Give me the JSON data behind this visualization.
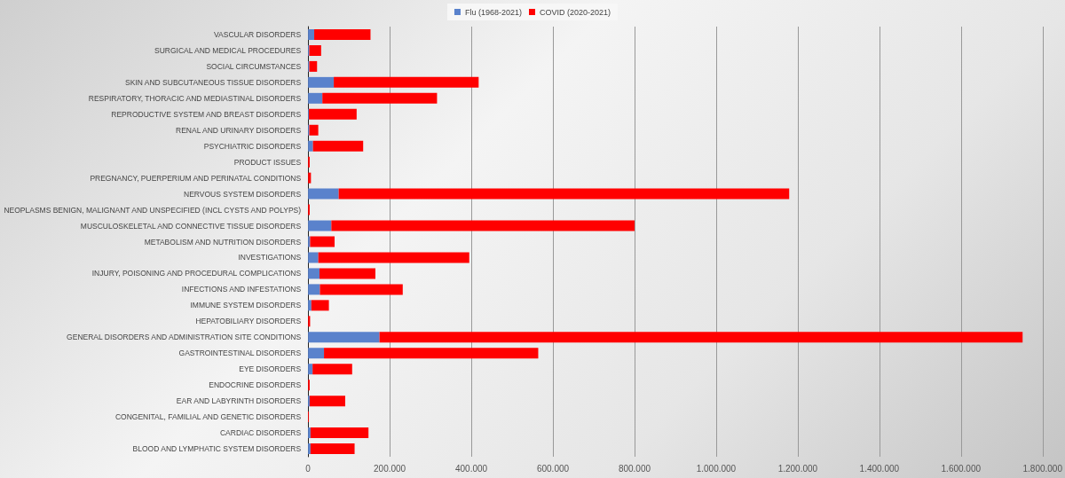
{
  "chart_data": {
    "type": "bar",
    "orientation": "horizontal",
    "stacked": true,
    "categories": [
      "VASCULAR DISORDERS",
      "SURGICAL AND MEDICAL PROCEDURES",
      "SOCIAL CIRCUMSTANCES",
      "SKIN AND SUBCUTANEOUS TISSUE DISORDERS",
      "RESPIRATORY, THORACIC AND MEDIASTINAL DISORDERS",
      "REPRODUCTIVE SYSTEM AND BREAST DISORDERS",
      "RENAL AND URINARY DISORDERS",
      "PSYCHIATRIC DISORDERS",
      "PRODUCT ISSUES",
      "PREGNANCY, PUERPERIUM AND PERINATAL CONDITIONS",
      "NERVOUS SYSTEM DISORDERS",
      "NEOPLASMS BENIGN, MALIGNANT AND UNSPECIFIED (INCL CYSTS AND POLYPS)",
      "MUSCULOSKELETAL AND CONNECTIVE TISSUE DISORDERS",
      "METABOLISM AND NUTRITION DISORDERS",
      "INVESTIGATIONS",
      "INJURY, POISONING AND PROCEDURAL COMPLICATIONS",
      "INFECTIONS AND INFESTATIONS",
      "IMMUNE SYSTEM DISORDERS",
      "HEPATOBILIARY DISORDERS",
      "GENERAL DISORDERS AND ADMINISTRATION SITE CONDITIONS",
      "GASTROINTESTINAL DISORDERS",
      "EYE DISORDERS",
      "ENDOCRINE DISORDERS",
      "EAR AND LABYRINTH DISORDERS",
      "CONGENITAL, FAMILIAL AND GENETIC DISORDERS",
      "CARDIAC DISORDERS",
      "BLOOD AND LYMPHATIC SYSTEM DISORDERS"
    ],
    "series": [
      {
        "name": "Flu (1968-2021)",
        "color": "#5a82cc",
        "values": [
          15000,
          3000,
          3000,
          63000,
          35000,
          2000,
          3000,
          12000,
          null,
          null,
          75000,
          null,
          57000,
          5000,
          25000,
          28000,
          29000,
          8000,
          null,
          175000,
          39000,
          11000,
          null,
          4000,
          null,
          6000,
          6000
        ]
      },
      {
        "name": "COVID (2020-2021)",
        "color": "#ff0000",
        "values": [
          138000,
          29000,
          19000,
          355000,
          281000,
          117000,
          22000,
          123000,
          4000,
          7000,
          1104000,
          4000,
          743000,
          60000,
          370000,
          137000,
          203000,
          43000,
          5000,
          1576000,
          525000,
          97000,
          4000,
          87000,
          2000,
          142000,
          108000
        ]
      }
    ],
    "xlim": [
      0,
      1800000
    ],
    "xticks": [
      0,
      {
        "value": 200000,
        "label": "200.000"
      },
      {
        "value": 400000,
        "label": "400.000"
      },
      {
        "value": 600000,
        "label": "600.000"
      },
      {
        "value": 800000,
        "label": "800.000"
      },
      {
        "value": 1000000,
        "label": "1.000.000"
      },
      {
        "value": 1200000,
        "label": "1.200.000"
      },
      {
        "value": 1400000,
        "label": "1.400.000"
      },
      {
        "value": 1600000,
        "label": "1.600.000"
      },
      {
        "value": 1800000,
        "label": "1.800.000"
      }
    ],
    "grid": "x",
    "legend": "top"
  }
}
